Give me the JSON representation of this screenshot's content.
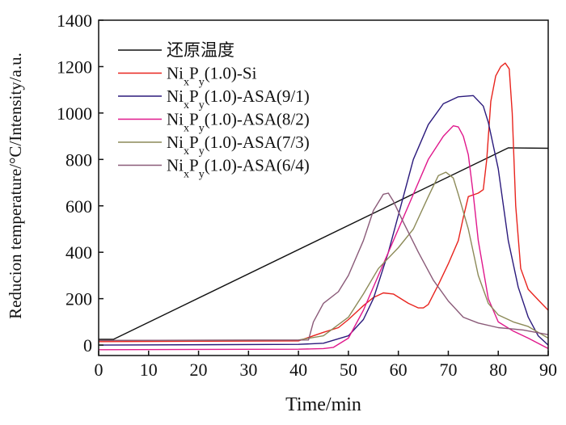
{
  "chart_data": {
    "type": "line",
    "xlabel": "Time/min",
    "ylabel": "Reducion temperature/°C/Intensity/a.u.",
    "xlim": [
      0,
      90
    ],
    "ylim": [
      -45,
      1400
    ],
    "xticks": [
      0,
      10,
      20,
      30,
      40,
      50,
      60,
      70,
      80,
      90
    ],
    "yticks": [
      0,
      200,
      400,
      600,
      800,
      1000,
      1200,
      1400
    ],
    "grid": false,
    "legend_position": "top-left",
    "series": [
      {
        "name": "还原温度",
        "label_parts": [
          "还原温度"
        ],
        "color": "#111111",
        "x": [
          0,
          3,
          82,
          90
        ],
        "y": [
          25,
          25,
          850,
          848
        ]
      },
      {
        "name": "NixPy(1.0)-Si",
        "label_parts": [
          "Ni",
          "x",
          "P",
          "y",
          "(1.0)-Si"
        ],
        "color": "#e8241e",
        "x": [
          0,
          40,
          43,
          45,
          48,
          50,
          53,
          55,
          57,
          59,
          62,
          64,
          65,
          66,
          68,
          70,
          72,
          73,
          74,
          76,
          77,
          77.7,
          78.5,
          79.5,
          80.5,
          81.4,
          82.2,
          82.8,
          83.5,
          84.5,
          86,
          88,
          90
        ],
        "y": [
          15,
          18,
          40,
          55,
          75,
          110,
          170,
          205,
          225,
          220,
          180,
          160,
          160,
          175,
          260,
          350,
          450,
          550,
          640,
          655,
          670,
          800,
          1050,
          1160,
          1200,
          1215,
          1190,
          1000,
          600,
          330,
          240,
          195,
          150
        ]
      },
      {
        "name": "NixPy(1.0)-ASA(9/1)",
        "label_parts": [
          "Ni",
          "x",
          "P",
          "y",
          "(1.0)-ASA(9/1)"
        ],
        "color": "#2b1a7c",
        "x": [
          0,
          40,
          45,
          50,
          53,
          55,
          58,
          60,
          63,
          66,
          69,
          72,
          75,
          77,
          78,
          80,
          82,
          84,
          86,
          88,
          90
        ],
        "y": [
          0,
          3,
          8,
          40,
          110,
          200,
          400,
          560,
          800,
          950,
          1040,
          1070,
          1075,
          1030,
          960,
          760,
          450,
          250,
          120,
          40,
          0
        ]
      },
      {
        "name": "NixPy(1.0)-ASA(8/2)",
        "label_parts": [
          "Ni",
          "x",
          "P",
          "y",
          "(1.0)-ASA(8/2)"
        ],
        "color": "#e0188c",
        "x": [
          0,
          40,
          45,
          47,
          50,
          53,
          56,
          60,
          63,
          66,
          69,
          71,
          72,
          73,
          74,
          75,
          76,
          78,
          80,
          83,
          86,
          90
        ],
        "y": [
          -20,
          -18,
          -15,
          -10,
          30,
          150,
          300,
          500,
          650,
          800,
          900,
          945,
          940,
          900,
          820,
          650,
          450,
          200,
          100,
          60,
          30,
          -15
        ]
      },
      {
        "name": "NixPy(1.0)-ASA(7/3)",
        "label_parts": [
          "Ni",
          "x",
          "P",
          "y",
          "(1.0)-ASA(7/3)"
        ],
        "color": "#8c8a58",
        "x": [
          0,
          40,
          45,
          50,
          53,
          56,
          60,
          63,
          66,
          68,
          69.5,
          71,
          72,
          74,
          76,
          78,
          80,
          83,
          86,
          88,
          90
        ],
        "y": [
          20,
          22,
          40,
          120,
          220,
          330,
          420,
          500,
          640,
          730,
          745,
          720,
          650,
          500,
          300,
          180,
          130,
          100,
          80,
          55,
          30
        ]
      },
      {
        "name": "NixPy(1.0)-ASA(6/4)",
        "label_parts": [
          "Ni",
          "x",
          "P",
          "y",
          "(1.0)-ASA(6/4)"
        ],
        "color": "#8a5a78",
        "x": [
          0,
          42,
          43,
          45,
          48,
          50,
          53,
          55,
          57,
          58,
          59,
          61,
          64,
          67,
          70,
          73,
          76,
          80,
          85,
          90
        ],
        "y": [
          20,
          22,
          100,
          180,
          230,
          300,
          450,
          580,
          650,
          655,
          620,
          530,
          400,
          280,
          190,
          120,
          95,
          75,
          65,
          45
        ]
      }
    ]
  }
}
